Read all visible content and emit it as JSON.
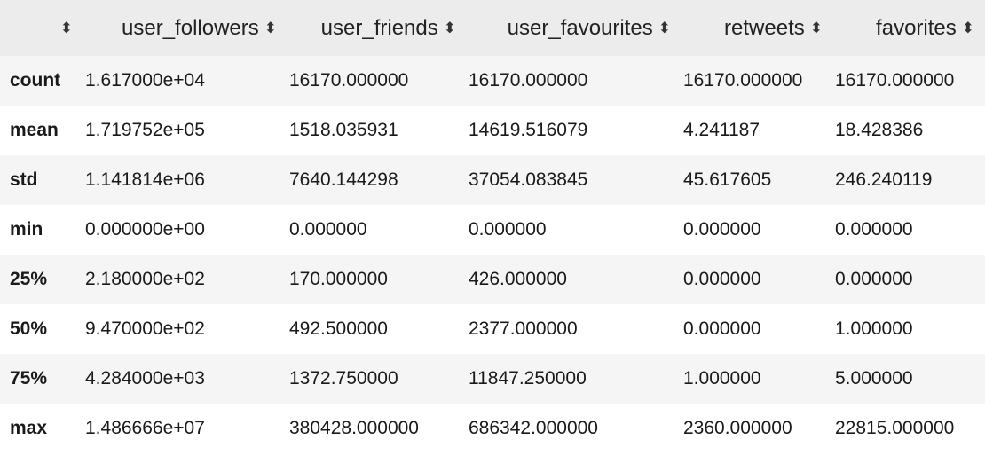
{
  "table": {
    "sort_icon": "sort-updown-icon",
    "columns": [
      "user_followers",
      "user_friends",
      "user_favourites",
      "retweets",
      "favorites"
    ],
    "rows": [
      {
        "label": "count",
        "values": [
          "1.617000e+04",
          "16170.000000",
          "16170.000000",
          "16170.000000",
          "16170.000000"
        ]
      },
      {
        "label": "mean",
        "values": [
          "1.719752e+05",
          "1518.035931",
          "14619.516079",
          "4.241187",
          "18.428386"
        ]
      },
      {
        "label": "std",
        "values": [
          "1.141814e+06",
          "7640.144298",
          "37054.083845",
          "45.617605",
          "246.240119"
        ]
      },
      {
        "label": "min",
        "values": [
          "0.000000e+00",
          "0.000000",
          "0.000000",
          "0.000000",
          "0.000000"
        ]
      },
      {
        "label": "25%",
        "values": [
          "2.180000e+02",
          "170.000000",
          "426.000000",
          "0.000000",
          "0.000000"
        ]
      },
      {
        "label": "50%",
        "values": [
          "9.470000e+02",
          "492.500000",
          "2377.000000",
          "0.000000",
          "1.000000"
        ]
      },
      {
        "label": "75%",
        "values": [
          "4.284000e+03",
          "1372.750000",
          "11847.250000",
          "1.000000",
          "5.000000"
        ]
      },
      {
        "label": "max",
        "values": [
          "1.486666e+07",
          "380428.000000",
          "686342.000000",
          "2360.000000",
          "22815.000000"
        ]
      }
    ]
  }
}
